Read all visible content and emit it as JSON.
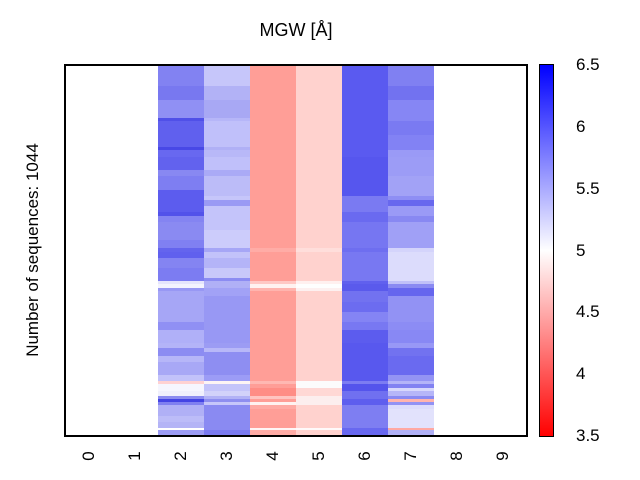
{
  "title": "MGW [Å]",
  "y_axis_label": "Number of sequences: 1044",
  "x_axis": {
    "tick_labels": [
      "0",
      "1",
      "2",
      "3",
      "4",
      "5",
      "6",
      "7",
      "8",
      "9"
    ]
  },
  "colorbar": {
    "tick_labels": [
      "6.5",
      "6",
      "5.5",
      "5",
      "4.5",
      "4",
      "3.5"
    ],
    "min": 3.5,
    "max": 6.5,
    "top_color": "#0000ff",
    "mid_color": "#ffffff",
    "bottom_color": "#ff0000"
  },
  "chart_data": {
    "type": "heatmap",
    "title": "MGW [Å]",
    "ylabel": "Number of sequences: 1044",
    "num_sequences": 1044,
    "x_categories": [
      "0",
      "1",
      "2",
      "3",
      "4",
      "5",
      "6",
      "7",
      "8",
      "9"
    ],
    "data_columns": [
      "2",
      "3",
      "4",
      "5",
      "6",
      "7"
    ],
    "empty_columns": [
      "0",
      "1",
      "8",
      "9"
    ],
    "value_scale": {
      "units": "Å",
      "min": 3.5,
      "max": 6.5,
      "white_at": 5,
      "ticks": [
        6.5,
        6,
        5.5,
        5,
        4.5,
        4,
        3.5
      ]
    },
    "approx_column_means_angstrom": {
      "2": 5.8,
      "3": 5.6,
      "4": 4.1,
      "5": 4.6,
      "6": 6.0,
      "7": 5.7
    },
    "rows": [
      {
        "h": 20,
        "c": [
          "#8282f2",
          "#c6c6fa",
          "#ff9e97",
          "#ffd2ce",
          "#5a5af0",
          "#8080f2"
        ]
      },
      {
        "h": 14,
        "c": [
          "#7878f0",
          "#b2b2f6",
          "#ff9e97",
          "#ffd2ce",
          "#5a5af0",
          "#7272f0"
        ]
      },
      {
        "h": 18,
        "c": [
          "#9090f4",
          "#a8a8f4",
          "#ff9e97",
          "#ffd2ce",
          "#5a5af0",
          "#8686f4"
        ]
      },
      {
        "h": 3,
        "c": [
          "#5050e8",
          "#b6b6f8",
          "#ff9e97",
          "#ffd2ce",
          "#5a5af0",
          "#8686f4"
        ]
      },
      {
        "h": 14,
        "c": [
          "#6060ee",
          "#c0c0fa",
          "#ff9e97",
          "#ffd2ce",
          "#5a5af0",
          "#7a7af2"
        ]
      },
      {
        "h": 12,
        "c": [
          "#6060ee",
          "#c0c0fa",
          "#ff9e97",
          "#ffd2ce",
          "#5a5af0",
          "#8282f4"
        ]
      },
      {
        "h": 3,
        "c": [
          "#4848e6",
          "#b0b0f6",
          "#ff9e97",
          "#ffd2ce",
          "#5a5af0",
          "#8282f4"
        ]
      },
      {
        "h": 7,
        "c": [
          "#6868f0",
          "#b8b8f8",
          "#ff9e97",
          "#ffd2ce",
          "#5a5af0",
          "#9a9af6"
        ]
      },
      {
        "h": 13,
        "c": [
          "#6262ee",
          "#c0c0fa",
          "#ff9e97",
          "#ffd2ce",
          "#5656ee",
          "#9c9cf6"
        ]
      },
      {
        "h": 6,
        "c": [
          "#8888f2",
          "#aaaaf6",
          "#ff9e97",
          "#ffd2ce",
          "#5656ee",
          "#9c9cf6"
        ]
      },
      {
        "h": 14,
        "c": [
          "#7e7ef2",
          "#bcbcf8",
          "#ff9e97",
          "#ffd2ce",
          "#5656ee",
          "#a2a2f6"
        ]
      },
      {
        "h": 6,
        "c": [
          "#5c5cee",
          "#bcbcf8",
          "#ff9e97",
          "#ffd2ce",
          "#5656ee",
          "#a2a2f6"
        ]
      },
      {
        "h": 4,
        "c": [
          "#5c5cee",
          "#c6c6fa",
          "#ff9e97",
          "#ffd2ce",
          "#7a7af2",
          "#8e8ef4"
        ]
      },
      {
        "h": 6,
        "c": [
          "#5c5cee",
          "#9a9af4",
          "#ff9e97",
          "#ffd2ce",
          "#7a7af2",
          "#6868ee"
        ]
      },
      {
        "h": 6,
        "c": [
          "#5c5cee",
          "#c4c4fa",
          "#ff9e97",
          "#ffd2ce",
          "#7a7af2",
          "#9a9af6"
        ]
      },
      {
        "h": 4,
        "c": [
          "#5252ea",
          "#c4c4fa",
          "#ff9e97",
          "#ffd2ce",
          "#6a6af0",
          "#9a9af6"
        ]
      },
      {
        "h": 6,
        "c": [
          "#8484f2",
          "#c4c4fa",
          "#ff9e97",
          "#ffd2ce",
          "#6a6af0",
          "#8888f2"
        ]
      },
      {
        "h": 8,
        "c": [
          "#8a8af2",
          "#c4c4fa",
          "#ff9e97",
          "#ffd2ce",
          "#7676f2",
          "#a0a0f6"
        ]
      },
      {
        "h": 10,
        "c": [
          "#8a8af2",
          "#ccccfb",
          "#ff9e97",
          "#ffd2ce",
          "#7676f2",
          "#a0a0f6"
        ]
      },
      {
        "h": 8,
        "c": [
          "#8080f2",
          "#ccccfb",
          "#ff9e97",
          "#ffd2ce",
          "#7676f2",
          "#a0a0f6"
        ]
      },
      {
        "h": 4,
        "c": [
          "#6464ee",
          "#a6a6f6",
          "#ffaca6",
          "#ffdedb",
          "#6e6ef0",
          "#d4d4fb"
        ]
      },
      {
        "h": 6,
        "c": [
          "#6060ee",
          "#c2c2fa",
          "#ff9e97",
          "#ffd2ce",
          "#7878f2",
          "#dcdcfc"
        ]
      },
      {
        "h": 10,
        "c": [
          "#8484f2",
          "#b4b4f8",
          "#ff9e97",
          "#ffd2ce",
          "#7878f2",
          "#dcdcfc"
        ]
      },
      {
        "h": 10,
        "c": [
          "#7c7cf2",
          "#c8c8fa",
          "#ff9e97",
          "#ffd2ce",
          "#7878f2",
          "#dcdcfc"
        ]
      },
      {
        "h": 3,
        "c": [
          "#7c7cf2",
          "#8c8cf2",
          "#ff9e97",
          "#ffd2ce",
          "#7878f2",
          "#dcdcfc"
        ]
      },
      {
        "h": 3,
        "c": [
          "#e6e6fc",
          "#b0b0f6",
          "#ffc8c4",
          "#fff0ef",
          "#6060ee",
          "#c0c0f8"
        ]
      },
      {
        "h": 4,
        "c": [
          "#f4f4fe",
          "#b0b0f6",
          "#fff2f0",
          "#fefefe",
          "#5a5aec",
          "#8a8af2"
        ]
      },
      {
        "h": 3,
        "c": [
          "#9898f4",
          "#a2a2f6",
          "#ffb4ae",
          "#fdf0f0",
          "#5a5aec",
          "#6666ee"
        ]
      },
      {
        "h": 5,
        "c": [
          "#a6a6f6",
          "#a2a2f6",
          "#ff9e97",
          "#ffd2ce",
          "#7272f0",
          "#6666ee"
        ]
      },
      {
        "h": 6,
        "c": [
          "#a6a6f6",
          "#9898f4",
          "#ff9e97",
          "#ffd2ce",
          "#7272f0",
          "#9292f4"
        ]
      },
      {
        "h": 10,
        "c": [
          "#a6a6f6",
          "#9898f4",
          "#ff9e97",
          "#ffd2ce",
          "#6c6cf0",
          "#9292f4"
        ]
      },
      {
        "h": 10,
        "c": [
          "#a6a6f6",
          "#9898f4",
          "#ff9e97",
          "#ffd2ce",
          "#8484f4",
          "#9292f4"
        ]
      },
      {
        "h": 8,
        "c": [
          "#9090f4",
          "#9898f4",
          "#ff9e97",
          "#ffd2ce",
          "#7878f2",
          "#8c8cf4"
        ]
      },
      {
        "h": 13,
        "c": [
          "#b0b0f8",
          "#9898f4",
          "#ff9e97",
          "#ffd2ce",
          "#5c5cee",
          "#8888f4"
        ]
      },
      {
        "h": 5,
        "c": [
          "#b4b4f8",
          "#9c9cf4",
          "#ff9e97",
          "#ffd2ce",
          "#5858ee",
          "#9898f6"
        ]
      },
      {
        "h": 4,
        "c": [
          "#8c8cf2",
          "#b8b8f8",
          "#ff9e97",
          "#ffd2ce",
          "#5858ee",
          "#7272f0"
        ]
      },
      {
        "h": 4,
        "c": [
          "#8c8cf2",
          "#8e8ef2",
          "#ff9e97",
          "#ffd2ce",
          "#5858ee",
          "#7272f0"
        ]
      },
      {
        "h": 6,
        "c": [
          "#b6b6f8",
          "#8e8ef2",
          "#ff9e97",
          "#ffd2ce",
          "#5858ee",
          "#6a6af0"
        ]
      },
      {
        "h": 13,
        "c": [
          "#a8a8f6",
          "#8e8ef2",
          "#ff9e97",
          "#ffd2ce",
          "#5858ee",
          "#6a6af0"
        ]
      },
      {
        "h": 6,
        "c": [
          "#c2c2fa",
          "#9c9cf6",
          "#ff9e97",
          "#ffd2ce",
          "#5858ee",
          "#9494f4"
        ]
      },
      {
        "h": 3,
        "c": [
          "#ffd2d2",
          "#fdf4f4",
          "#ffb8b2",
          "#fcfcfc",
          "#7c7cf2",
          "#b4b4f8"
        ]
      },
      {
        "h": 4,
        "c": [
          "#f6f6fe",
          "#c4c4fa",
          "#ff9e97",
          "#fcfcfc",
          "#5454ec",
          "#8282f2"
        ]
      },
      {
        "h": 3,
        "c": [
          "#f6f6fe",
          "#c4c4fa",
          "#ff8d85",
          "#ffd8d5",
          "#5454ec",
          "#d8d8fc"
        ]
      },
      {
        "h": 5,
        "c": [
          "#f0f0fc",
          "#d2d2fa",
          "#ff8d85",
          "#ffd8d5",
          "#7070f0",
          "#b6b6f8"
        ]
      },
      {
        "h": 3,
        "c": [
          "#8c8cf0",
          "#b2b2f6",
          "#ffc4c0",
          "#fceeee",
          "#7070f0",
          "#8a8af2"
        ]
      },
      {
        "h": 3,
        "c": [
          "#4444e4",
          "#8e8ef0",
          "#ff9e97",
          "#fceeee",
          "#5e5eee",
          "#ffb4ae"
        ]
      },
      {
        "h": 3,
        "c": [
          "#8080f0",
          "#c6c6fa",
          "#fff2f0",
          "#fceeee",
          "#5e5eee",
          "#9292f4"
        ]
      },
      {
        "h": 4,
        "c": [
          "#b0b0f6",
          "#8a8af2",
          "#ffaaa4",
          "#ffd2ce",
          "#7e7ef2",
          "#dcdcfc"
        ]
      },
      {
        "h": 7,
        "c": [
          "#b0b0f6",
          "#8a8af2",
          "#ff9e97",
          "#ffd2ce",
          "#7e7ef2",
          "#e2e2fc"
        ]
      },
      {
        "h": 6,
        "c": [
          "#bcbcf8",
          "#8a8af2",
          "#ff9e97",
          "#ffd2ce",
          "#7e7ef2",
          "#e2e2fc"
        ]
      },
      {
        "h": 6,
        "c": [
          "#b4b4f6",
          "#8a8af2",
          "#ff9e97",
          "#ffd2ce",
          "#7e7ef2",
          "#e2e2fc"
        ]
      },
      {
        "h": 2,
        "c": [
          "#ffffff",
          "#8a8af2",
          "#fff6f5",
          "#fffafa",
          "#6868f0",
          "#ffa8a2"
        ]
      },
      {
        "h": 5,
        "c": [
          "#9c9cf4",
          "#7a7af0",
          "#ffaca6",
          "#ffd2ce",
          "#6868f0",
          "#b0b0f6"
        ]
      }
    ]
  }
}
